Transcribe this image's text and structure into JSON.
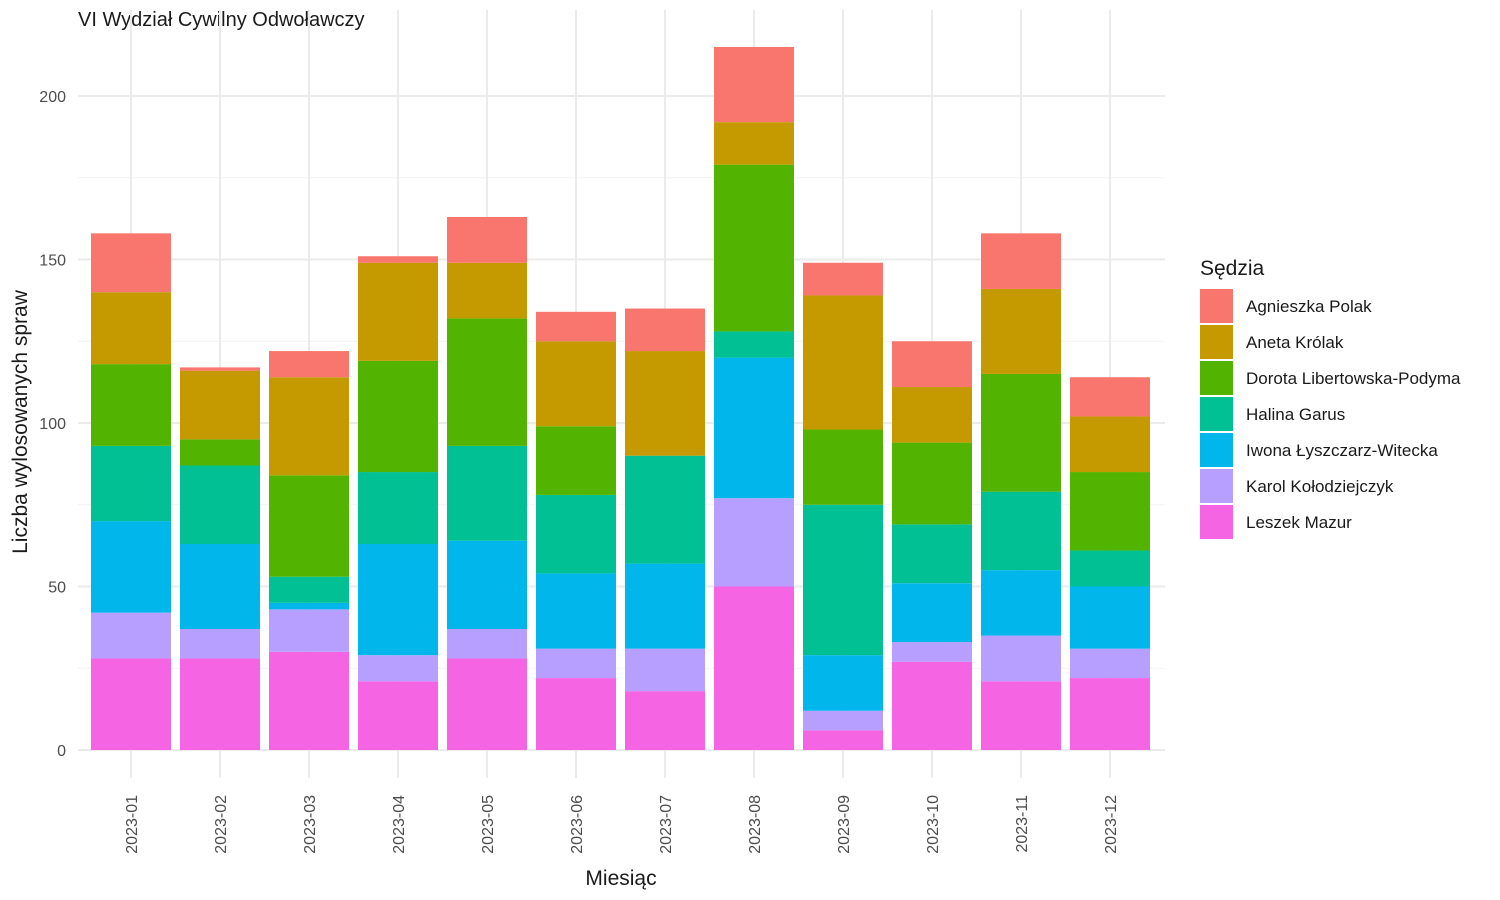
{
  "chart_data": {
    "type": "bar",
    "stacked": true,
    "title": "VI Wydział Cywilny Odwoławczy",
    "xlabel": "Miesiąc",
    "ylabel": "Liczba wylosowanych spraw",
    "ylim": [
      0,
      215
    ],
    "yticks": [
      0,
      50,
      100,
      150,
      200
    ],
    "grid": true,
    "legend_title": "Sędzia",
    "legend_position": "right",
    "categories": [
      "2023-01",
      "2023-02",
      "2023-03",
      "2023-04",
      "2023-05",
      "2023-06",
      "2023-07",
      "2023-08",
      "2023-09",
      "2023-10",
      "2023-11",
      "2023-12"
    ],
    "series": [
      {
        "name": "Leszek Mazur",
        "color": "#F564E3",
        "values": [
          28,
          28,
          30,
          21,
          28,
          22,
          18,
          50,
          6,
          27,
          21,
          22
        ]
      },
      {
        "name": "Karol Kołodziejczyk",
        "color": "#B79FFF",
        "values": [
          14,
          9,
          13,
          8,
          9,
          9,
          13,
          27,
          6,
          6,
          14,
          9
        ]
      },
      {
        "name": "Iwona Łyszczarz-Witecka",
        "color": "#00B6EB",
        "values": [
          28,
          26,
          2,
          34,
          27,
          23,
          26,
          43,
          17,
          18,
          20,
          19
        ]
      },
      {
        "name": "Halina Garus",
        "color": "#00C094",
        "values": [
          23,
          24,
          8,
          22,
          29,
          24,
          33,
          8,
          46,
          18,
          24,
          11
        ]
      },
      {
        "name": "Dorota Libertowska-Podyma",
        "color": "#53B400",
        "values": [
          25,
          8,
          31,
          34,
          39,
          21,
          0,
          51,
          23,
          25,
          36,
          24
        ]
      },
      {
        "name": "Aneta Królak",
        "color": "#C49A00",
        "values": [
          22,
          21,
          30,
          30,
          17,
          26,
          32,
          13,
          41,
          17,
          26,
          17
        ]
      },
      {
        "name": "Agnieszka Polak",
        "color": "#F8766D",
        "values": [
          18,
          1,
          8,
          2,
          14,
          9,
          13,
          23,
          10,
          14,
          17,
          12
        ]
      }
    ],
    "legend_order": [
      "Agnieszka Polak",
      "Aneta Królak",
      "Dorota Libertowska-Podyma",
      "Halina Garus",
      "Iwona Łyszczarz-Witecka",
      "Karol Kołodziejczyk",
      "Leszek Mazur"
    ]
  }
}
